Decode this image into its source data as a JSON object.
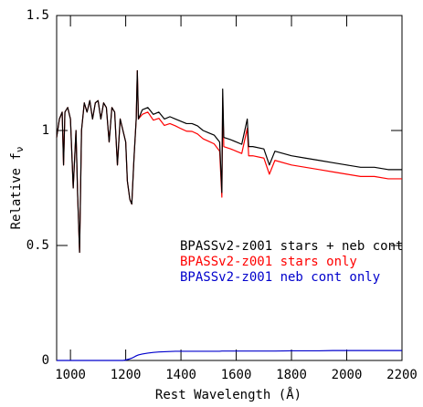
{
  "chart_data": {
    "type": "line",
    "x_label": "Rest Wavelength (Å)",
    "y_label": "Relative f",
    "y_label_subscript": "ν",
    "x": [
      950,
      960,
      970,
      975,
      980,
      990,
      1000,
      1010,
      1020,
      1026,
      1033,
      1040,
      1050,
      1060,
      1070,
      1080,
      1090,
      1100,
      1110,
      1120,
      1130,
      1140,
      1150,
      1160,
      1170,
      1180,
      1190,
      1200,
      1206,
      1215,
      1222,
      1230,
      1238,
      1242,
      1246,
      1260,
      1280,
      1300,
      1320,
      1340,
      1360,
      1380,
      1400,
      1420,
      1440,
      1460,
      1480,
      1500,
      1520,
      1540,
      1548,
      1551,
      1555,
      1580,
      1600,
      1620,
      1640,
      1645,
      1660,
      1700,
      1720,
      1740,
      1800,
      1850,
      1900,
      1950,
      2000,
      2050,
      2100,
      2150,
      2200
    ],
    "series": [
      {
        "name": "BPASSv2-z001 stars + neb cont",
        "color": "#000000",
        "values": [
          0.97,
          1.05,
          1.08,
          0.85,
          1.08,
          1.1,
          1.05,
          0.75,
          1.0,
          0.72,
          0.47,
          1.0,
          1.12,
          1.08,
          1.13,
          1.05,
          1.12,
          1.13,
          1.05,
          1.12,
          1.1,
          0.95,
          1.1,
          1.08,
          0.85,
          1.05,
          1.0,
          0.95,
          0.78,
          0.7,
          0.68,
          0.88,
          1.05,
          1.26,
          1.05,
          1.09,
          1.1,
          1.07,
          1.08,
          1.05,
          1.06,
          1.05,
          1.04,
          1.03,
          1.03,
          1.02,
          1.0,
          0.99,
          0.98,
          0.95,
          0.73,
          1.18,
          0.97,
          0.96,
          0.95,
          0.94,
          1.05,
          0.93,
          0.93,
          0.92,
          0.85,
          0.91,
          0.89,
          0.88,
          0.87,
          0.86,
          0.85,
          0.84,
          0.84,
          0.83,
          0.83
        ]
      },
      {
        "name": "BPASSv2-z001 stars only",
        "color": "#ff0000",
        "values": [
          0.97,
          1.05,
          1.08,
          0.85,
          1.08,
          1.1,
          1.05,
          0.75,
          1.0,
          0.72,
          0.47,
          1.0,
          1.12,
          1.08,
          1.13,
          1.05,
          1.12,
          1.13,
          1.05,
          1.12,
          1.1,
          0.95,
          1.1,
          1.08,
          0.85,
          1.05,
          1.0,
          0.95,
          0.78,
          0.7,
          0.68,
          0.88,
          1.05,
          1.26,
          1.05,
          1.07,
          1.08,
          1.045,
          1.053,
          1.022,
          1.03,
          1.02,
          1.008,
          0.997,
          0.996,
          0.985,
          0.964,
          0.953,
          0.942,
          0.91,
          0.71,
          1.14,
          0.93,
          0.92,
          0.91,
          0.9,
          1.01,
          0.89,
          0.89,
          0.88,
          0.81,
          0.87,
          0.85,
          0.84,
          0.83,
          0.82,
          0.81,
          0.8,
          0.8,
          0.79,
          0.79
        ]
      },
      {
        "name": "BPASSv2-z001 neb cont only",
        "color": "#0000cc",
        "values": [
          0,
          0,
          0,
          0,
          0,
          0,
          0,
          0,
          0,
          0,
          0,
          0,
          0,
          0,
          0,
          0,
          0,
          0,
          0,
          0,
          0,
          0,
          0,
          0,
          0,
          0,
          0,
          0.002,
          0.004,
          0.007,
          0.01,
          0.015,
          0.02,
          0.022,
          0.024,
          0.028,
          0.032,
          0.035,
          0.037,
          0.038,
          0.039,
          0.04,
          0.04,
          0.04,
          0.04,
          0.04,
          0.04,
          0.04,
          0.04,
          0.04,
          0.041,
          0.041,
          0.041,
          0.041,
          0.041,
          0.041,
          0.041,
          0.041,
          0.041,
          0.041,
          0.041,
          0.041,
          0.042,
          0.042,
          0.042,
          0.043,
          0.043,
          0.043,
          0.043,
          0.043,
          0.043
        ]
      }
    ],
    "xlim": [
      950,
      2200
    ],
    "xticks": [
      1000,
      1200,
      1400,
      1600,
      1800,
      2000,
      2200
    ],
    "ylim": [
      0,
      1.5
    ],
    "yticks": [
      0,
      0.5,
      1,
      1.5
    ]
  }
}
